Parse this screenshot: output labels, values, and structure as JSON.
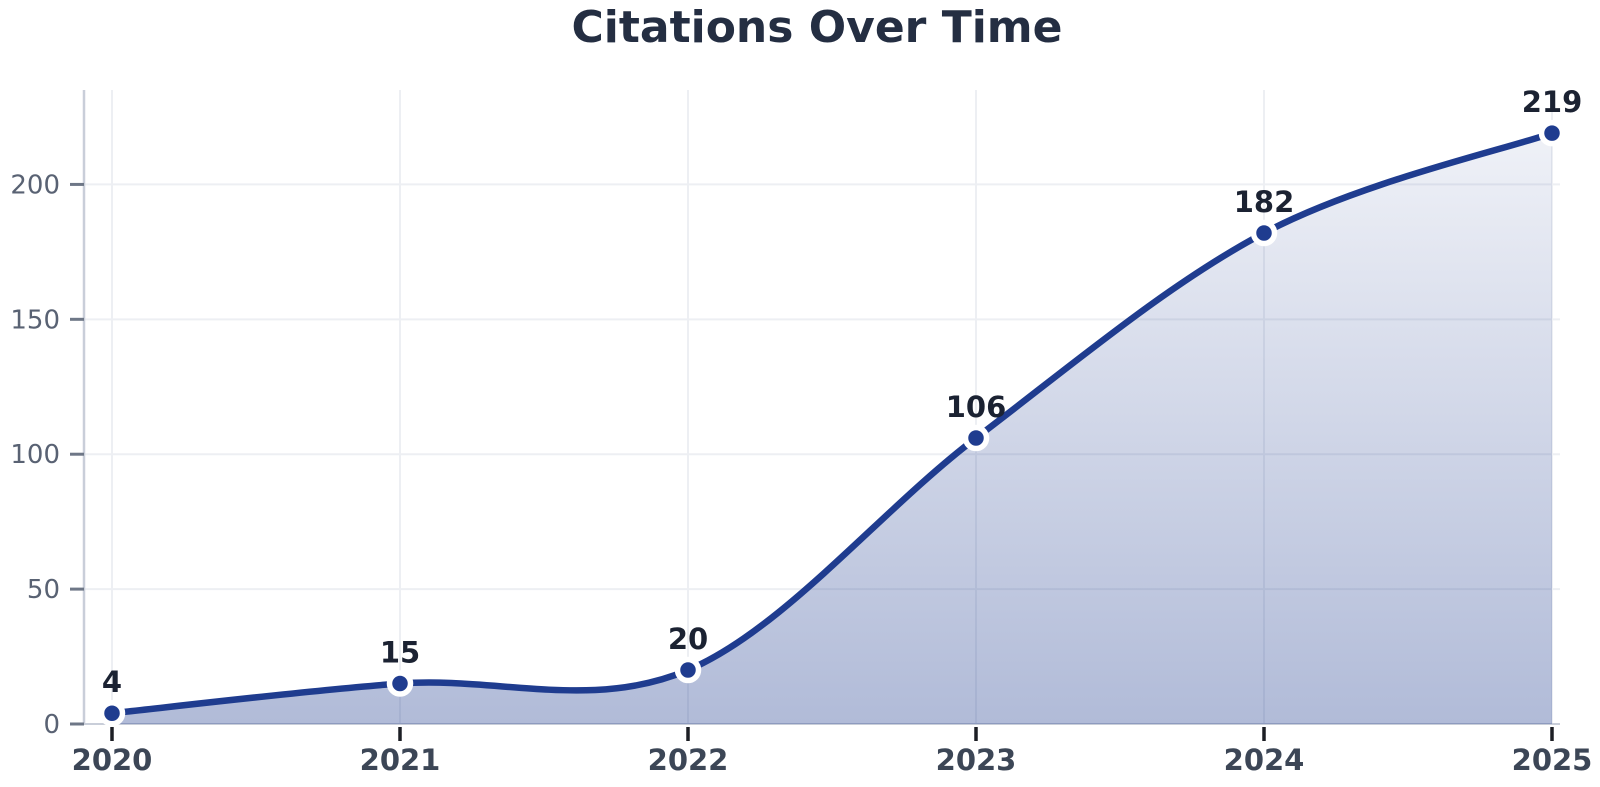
{
  "chart_data": {
    "type": "area",
    "title": "Citations Over Time",
    "categories": [
      "2020",
      "2021",
      "2022",
      "2023",
      "2024",
      "2025"
    ],
    "values": [
      4,
      15,
      20,
      106,
      182,
      219
    ],
    "xlabel": "",
    "ylabel": "",
    "ylim": [
      0,
      235
    ],
    "yticks": [
      0,
      50,
      100,
      150,
      200
    ],
    "grid": true,
    "legend": "none",
    "marker": "circle",
    "smooth": true,
    "value_labels_shown": true,
    "colors": {
      "line": "#1f3c8f",
      "marker": "#1f3c8f",
      "marker_ring": "#ffffff",
      "area_top": "rgba(31,60,143,0.07)",
      "area_bottom": "rgba(31,60,143,0.35)",
      "title": "#242e42",
      "value_label": "#1b2232",
      "x_tick_label": "#3c4656",
      "y_tick_label": "#596273",
      "x_tick": "#1c1e24",
      "y_tick": "#6e7787",
      "spine": "#c9ced9",
      "grid": "#edeff3",
      "background": "#ffffff"
    }
  }
}
